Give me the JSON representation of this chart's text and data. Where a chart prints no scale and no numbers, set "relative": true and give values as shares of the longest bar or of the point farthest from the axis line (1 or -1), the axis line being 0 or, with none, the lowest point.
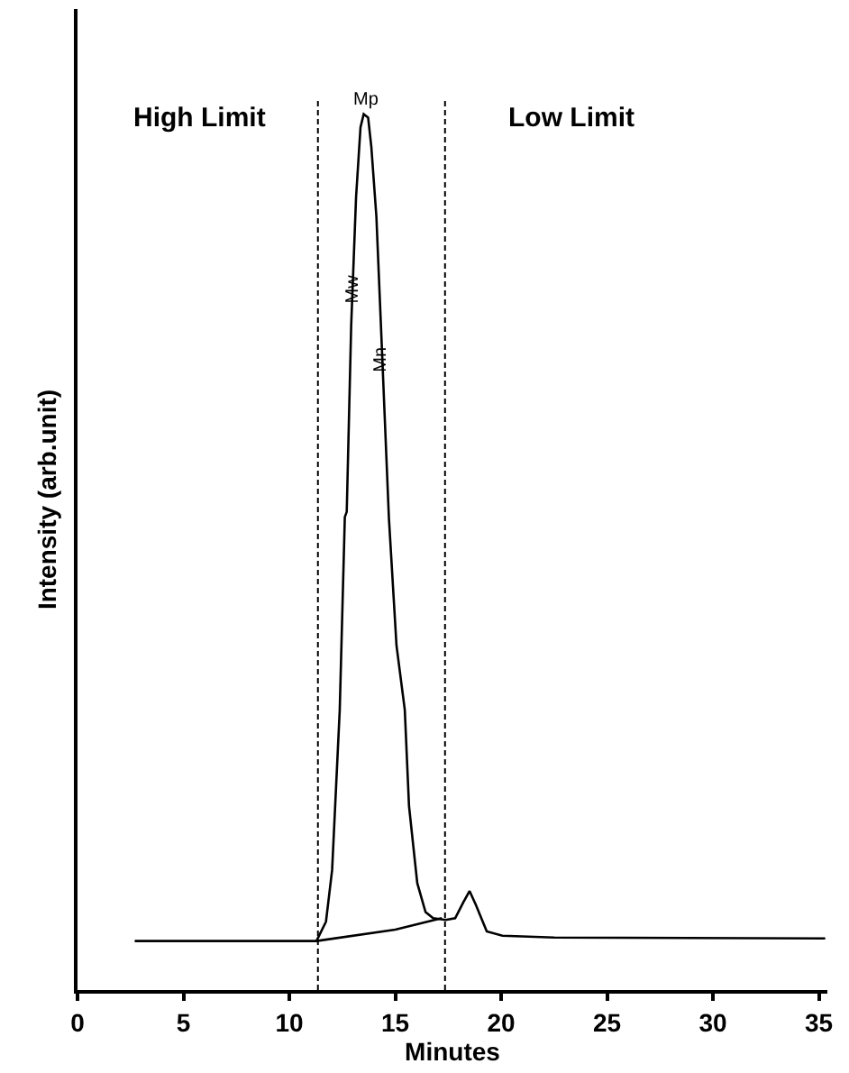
{
  "chart_data": {
    "type": "line",
    "xlabel": "Minutes",
    "ylabel": "Intensity (arb.unit)",
    "relative": true,
    "xlim": [
      0,
      35.4
    ],
    "xticks": [
      0,
      5,
      10,
      15,
      20,
      25,
      30,
      35
    ],
    "marker": "none",
    "line_style": "solid",
    "series": [
      {
        "color": "#000000",
        "x": [
          2.7,
          11.28,
          11.73,
          12.02,
          12.38,
          12.62,
          12.71,
          12.92,
          13.15,
          13.36,
          13.51,
          13.72,
          13.87,
          14.11,
          14.35,
          14.7,
          15.06,
          15.45,
          15.65,
          16.04,
          16.43,
          16.79,
          17.38,
          17.83,
          18.21,
          18.51,
          18.81,
          19.32,
          20.06,
          22.5,
          35.3
        ],
        "values": [
          0.056,
          0.056,
          0.078,
          0.137,
          0.32,
          0.54,
          0.546,
          0.759,
          0.905,
          0.985,
          1.0,
          0.996,
          0.963,
          0.883,
          0.744,
          0.539,
          0.393,
          0.32,
          0.21,
          0.122,
          0.089,
          0.082,
          0.08,
          0.082,
          0.1,
          0.113,
          0.097,
          0.067,
          0.062,
          0.06,
          0.059
        ]
      },
      {
        "color": "#000000",
        "x": [
          11.28,
          15.0,
          17.2
        ],
        "values": [
          0.056,
          0.069,
          0.082
        ]
      }
    ],
    "ref_lines": [
      {
        "axis": "x",
        "value": 11.35,
        "line_style": "dashed"
      },
      {
        "axis": "x",
        "value": 17.35,
        "line_style": "dashed"
      }
    ],
    "annotations": [
      "High Limit",
      "Low Limit",
      {
        "text": "Mp",
        "x": 13.6,
        "y": 1.0
      },
      {
        "text": "Mw",
        "x": 13.0,
        "y": 0.8
      },
      {
        "text": "Mn",
        "x": 14.3,
        "y": 0.72
      }
    ]
  }
}
